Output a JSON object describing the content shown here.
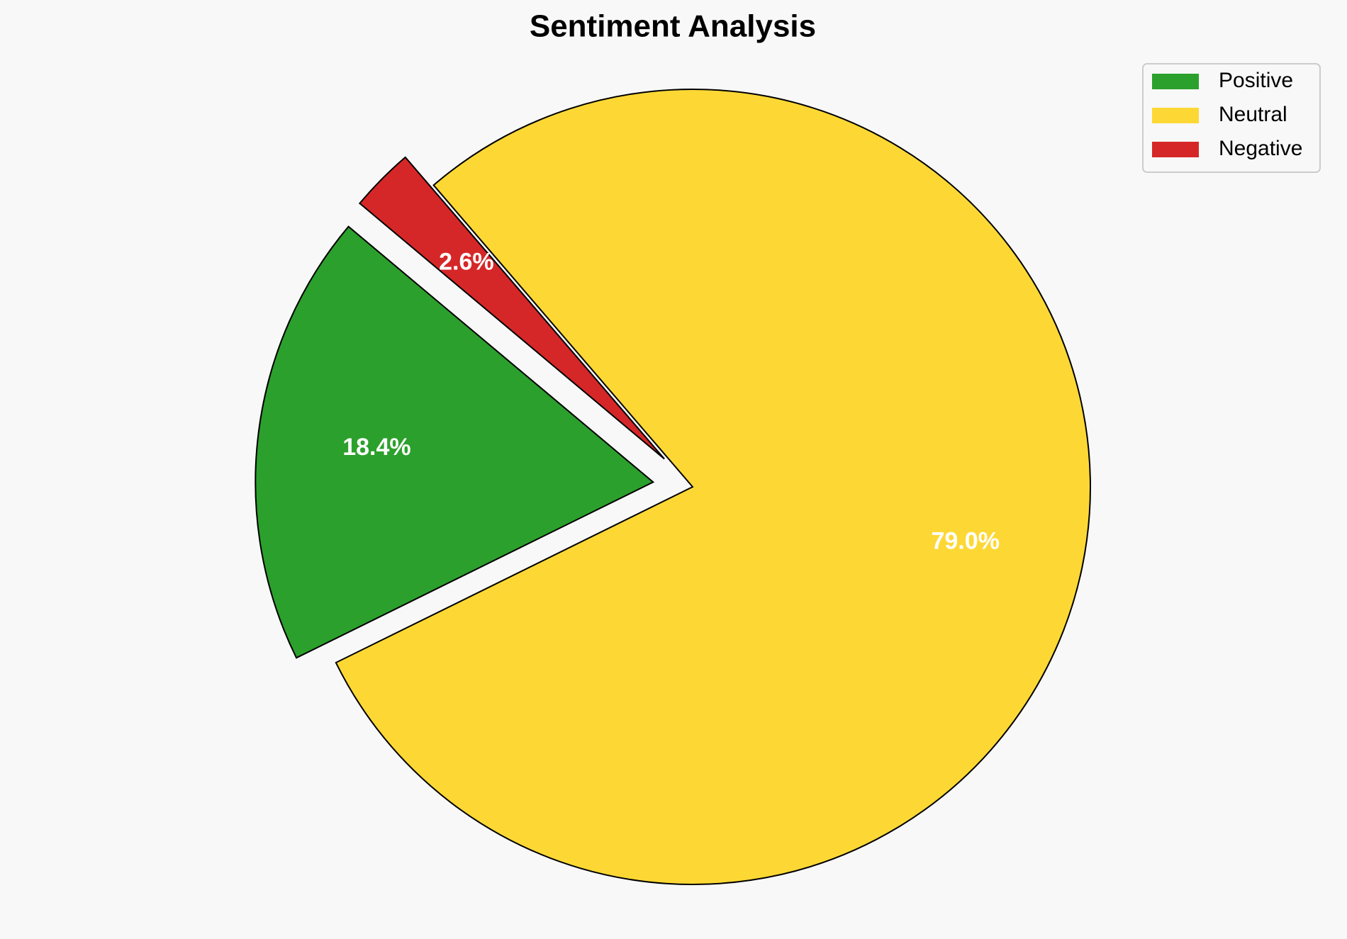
{
  "chart_data": {
    "type": "pie",
    "title": "Sentiment Analysis",
    "categories": [
      "Positive",
      "Neutral",
      "Negative"
    ],
    "values": [
      18.4,
      79.0,
      2.6
    ],
    "value_labels": [
      "18.4%",
      "79.0%",
      "2.6%"
    ],
    "colors": [
      "#2ca02c",
      "#fdd835",
      "#d62728"
    ],
    "startangle": 140,
    "explode": [
      0.1,
      0,
      0.1
    ],
    "legend": "upper right"
  }
}
